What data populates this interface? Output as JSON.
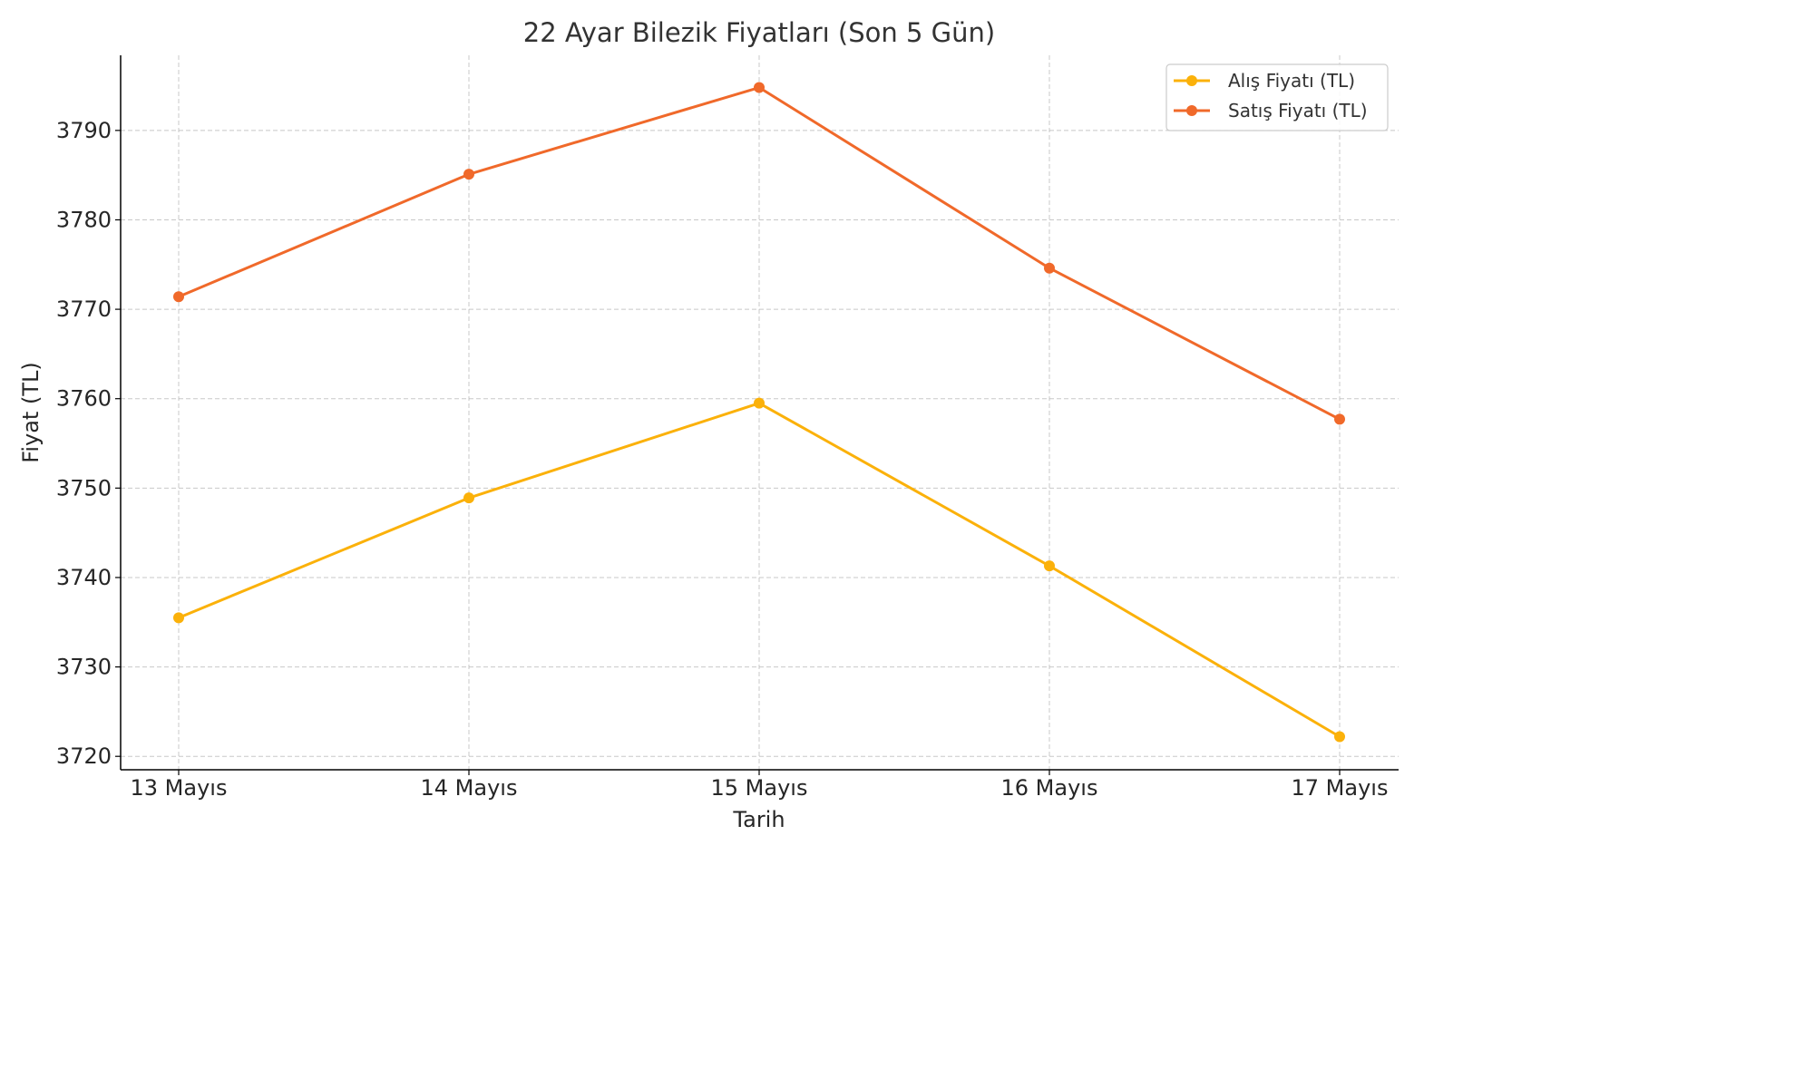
{
  "chart_data": {
    "type": "line",
    "title": "22 Ayar Bilezik Fiyatları (Son 5 Gün)",
    "xlabel": "Tarih",
    "ylabel": "Fiyat (TL)",
    "categories": [
      "13 Mayıs",
      "14 Mayıs",
      "15 Mayıs",
      "16 Mayıs",
      "17 Mayıs"
    ],
    "ylim": [
      3718.5,
      3798.4
    ],
    "yticks": [
      3720,
      3730,
      3740,
      3750,
      3760,
      3770,
      3780,
      3790
    ],
    "ytick_labels": [
      "3720",
      "3730",
      "3740",
      "3750",
      "3760",
      "3770",
      "3780",
      "3790"
    ],
    "grid": true,
    "legend_position": "top-right",
    "series": [
      {
        "name": "Alış Fiyatı (TL)",
        "color": "#fbb10a",
        "values": [
          3735.5,
          3748.9,
          3759.5,
          3741.3,
          3722.2
        ]
      },
      {
        "name": "Satış Fiyatı (TL)",
        "color": "#f0692a",
        "values": [
          3771.4,
          3785.1,
          3794.8,
          3774.6,
          3757.7
        ]
      }
    ]
  }
}
